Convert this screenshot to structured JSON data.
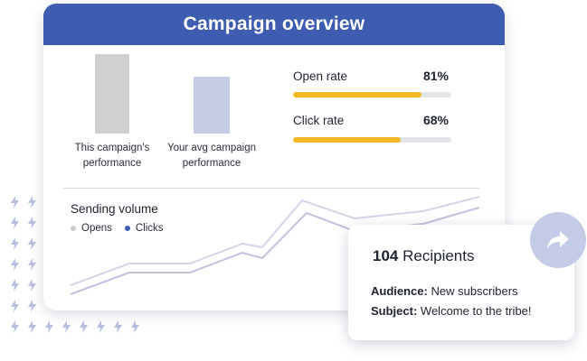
{
  "header": {
    "title": "Campaign overview"
  },
  "performance": {
    "bars": [
      {
        "label_line1": "This campaign's",
        "label_line2": "performance",
        "color": "#cfd0d2"
      },
      {
        "label_line1": "Your avg campaign",
        "label_line2": "performance",
        "color": "#c5cde4"
      }
    ],
    "metrics": [
      {
        "label": "Open rate",
        "value": "81%",
        "fraction": 0.81
      },
      {
        "label": "Click rate",
        "value": "68%",
        "fraction": 0.68
      }
    ],
    "accent_color": "#f3b824"
  },
  "sending_volume": {
    "title": "Sending volume",
    "legend": [
      {
        "label": "Opens",
        "color": "#c9cacd"
      },
      {
        "label": "Clicks",
        "color": "#3e5cb0"
      }
    ]
  },
  "popup": {
    "recipients_count": "104",
    "recipients_label": "Recipients",
    "audience_label": "Audience:",
    "audience_value": "New subscribers",
    "subject_label": "Subject:",
    "subject_value": "Welcome to the tribe!"
  },
  "icons": {
    "share": "share-arrow-icon",
    "decoration": "lightning-bolt-icon"
  },
  "colors": {
    "brand": "#3e5cb0",
    "line_opens": "#d7d3ea",
    "line_clicks": "#c3c0e0"
  }
}
